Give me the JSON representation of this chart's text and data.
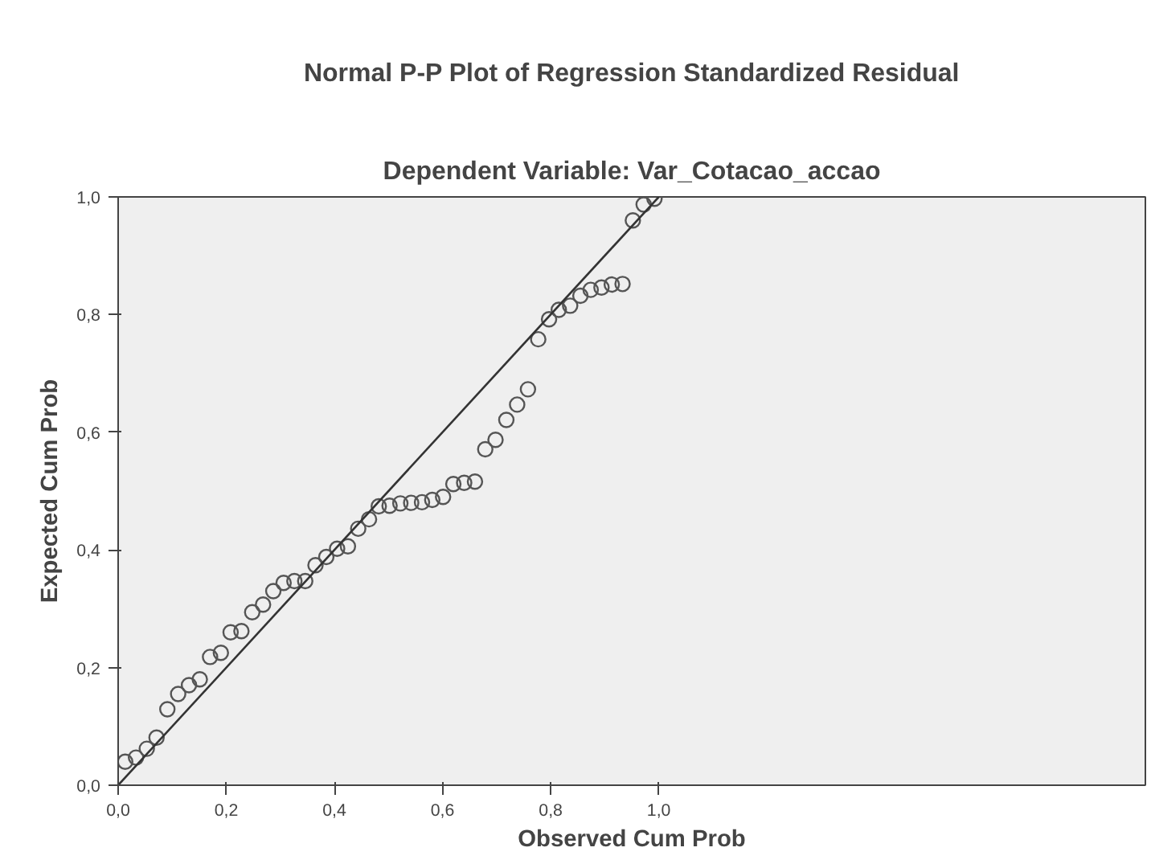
{
  "chart_data": {
    "type": "scatter",
    "title": "Normal P-P Plot of Regression Standardized Residual",
    "subtitle": "Dependent Variable: Var_Cotacao_accao",
    "xlabel": "Observed Cum Prob",
    "ylabel": "Expected Cum Prob",
    "xlim": [
      0,
      1.9
    ],
    "ylim": [
      0,
      1
    ],
    "xticks": [
      {
        "value": 0,
        "label": "0,0"
      },
      {
        "value": 0.2,
        "label": "0,2"
      },
      {
        "value": 0.4,
        "label": "0,4"
      },
      {
        "value": 0.6,
        "label": "0,6"
      },
      {
        "value": 0.8,
        "label": "0,8"
      },
      {
        "value": 1,
        "label": "1,0"
      }
    ],
    "yticks": [
      {
        "value": 0,
        "label": "0,0"
      },
      {
        "value": 0.2,
        "label": "0,2"
      },
      {
        "value": 0.4,
        "label": "0,4"
      },
      {
        "value": 0.6,
        "label": "0,6"
      },
      {
        "value": 0.8,
        "label": "0,8"
      },
      {
        "value": 1,
        "label": "1,0"
      }
    ],
    "grid": false,
    "series": [
      {
        "marker": "circle",
        "color": "#555555",
        "x": [
          0.013,
          0.033,
          0.053,
          0.071,
          0.091,
          0.111,
          0.131,
          0.151,
          0.17,
          0.19,
          0.208,
          0.228,
          0.248,
          0.268,
          0.287,
          0.306,
          0.326,
          0.346,
          0.365,
          0.385,
          0.405,
          0.425,
          0.444,
          0.464,
          0.482,
          0.502,
          0.522,
          0.542,
          0.562,
          0.581,
          0.601,
          0.62,
          0.64,
          0.66,
          0.679,
          0.698,
          0.718,
          0.738,
          0.758,
          0.777,
          0.797,
          0.815,
          0.836,
          0.855,
          0.874,
          0.894,
          0.913,
          0.933,
          0.952,
          0.972,
          0.992
        ],
        "values": [
          0.04,
          0.047,
          0.062,
          0.081,
          0.129,
          0.155,
          0.17,
          0.18,
          0.218,
          0.225,
          0.26,
          0.262,
          0.294,
          0.307,
          0.33,
          0.344,
          0.347,
          0.347,
          0.374,
          0.388,
          0.402,
          0.406,
          0.436,
          0.452,
          0.474,
          0.475,
          0.479,
          0.48,
          0.481,
          0.485,
          0.49,
          0.512,
          0.514,
          0.516,
          0.571,
          0.587,
          0.621,
          0.647,
          0.673,
          0.758,
          0.792,
          0.808,
          0.815,
          0.832,
          0.842,
          0.846,
          0.851,
          0.852,
          0.96,
          0.987,
          0.997
        ]
      },
      {
        "type": "line",
        "color": "#333333",
        "x": [
          0,
          1
        ],
        "values": [
          0,
          1
        ]
      }
    ]
  }
}
